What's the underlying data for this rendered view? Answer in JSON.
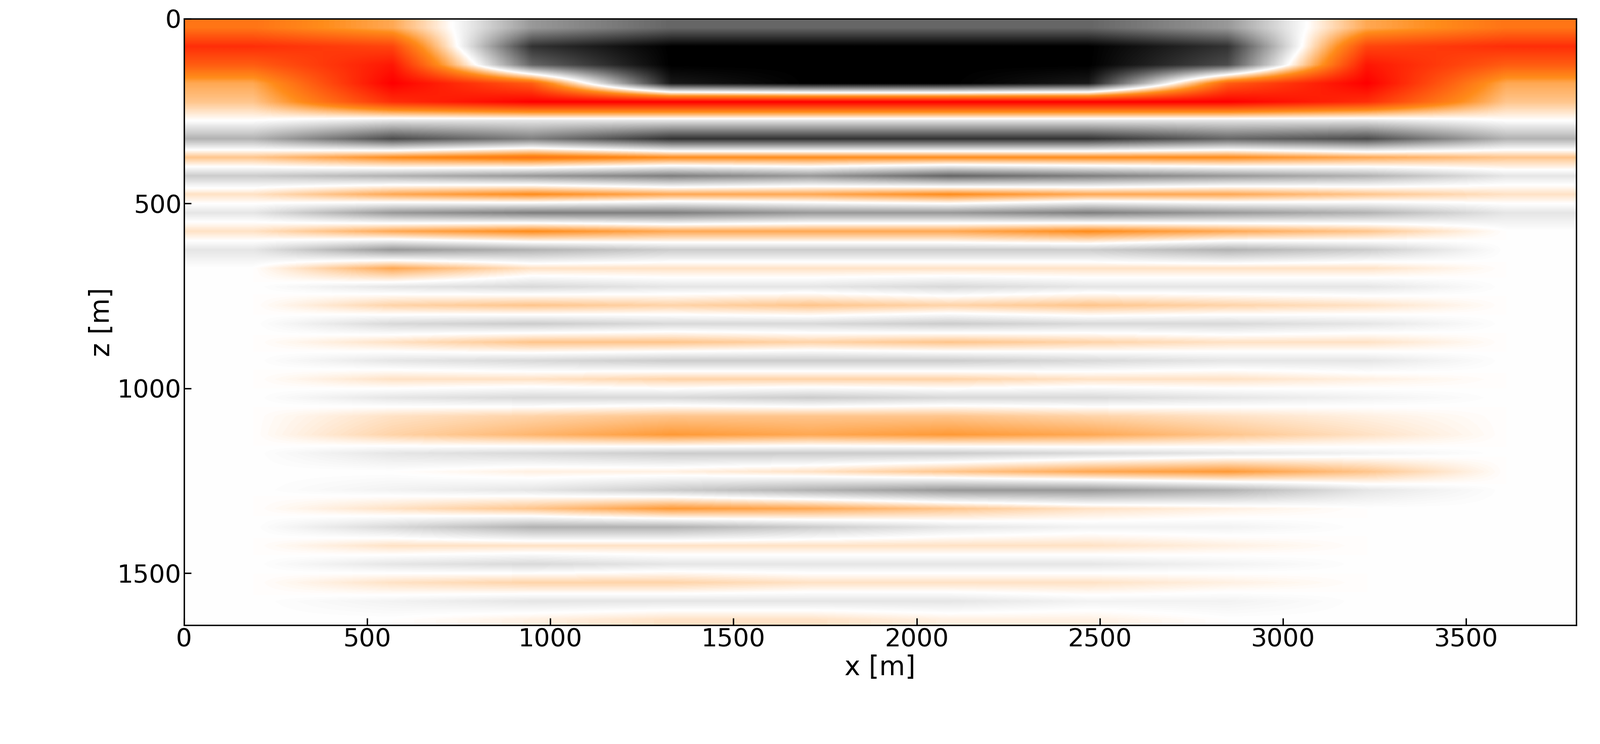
{
  "chart_data": {
    "type": "heatmap",
    "xlabel": "x [m]",
    "ylabel": "z [m]",
    "xlim": [
      0,
      3800
    ],
    "ylim": [
      1640,
      0
    ],
    "xticks": [
      0,
      500,
      1000,
      1500,
      2000,
      2500,
      3000,
      3500
    ],
    "yticks": [
      0,
      500,
      1000,
      1500
    ],
    "x": [
      190,
      570,
      950,
      1330,
      1710,
      2090,
      2470,
      2850,
      3230,
      3610
    ],
    "y": [
      25,
      75,
      125,
      175,
      225,
      275,
      325,
      375,
      425,
      475,
      525,
      575,
      625,
      675,
      725,
      775,
      825,
      875,
      925,
      975,
      1025,
      1075,
      1125,
      1175,
      1225,
      1275,
      1325,
      1375,
      1425,
      1475,
      1525,
      1575,
      1625
    ],
    "cells": [
      [
        -0.5,
        -0.3,
        0.4,
        0.6,
        0.6,
        0.6,
        0.6,
        0.4,
        -0.3,
        -0.5
      ],
      [
        -0.8,
        -0.7,
        0.8,
        1,
        1,
        1,
        1,
        0.8,
        -0.7,
        -0.8
      ],
      [
        -0.6,
        -0.9,
        0.6,
        1,
        1,
        1,
        1,
        0.7,
        -0.9,
        -0.6
      ],
      [
        -0.3,
        -1,
        -0.6,
        0.9,
        1,
        1,
        0.9,
        -0.6,
        -1,
        -0.3
      ],
      [
        -0.2,
        -0.8,
        -1,
        -1,
        -1,
        -1,
        -1,
        -1,
        -0.8,
        -0.2
      ],
      [
        0,
        0.1,
        0.1,
        0.1,
        0.1,
        0.1,
        0.1,
        0.1,
        0.1,
        0
      ],
      [
        0.3,
        0.7,
        0.5,
        0.8,
        0.8,
        0.8,
        0.8,
        0.6,
        0.7,
        0.3
      ],
      [
        -0.2,
        -0.4,
        -0.5,
        -0.4,
        -0.4,
        -0.4,
        -0.4,
        -0.4,
        -0.3,
        -0.2
      ],
      [
        0.2,
        0.3,
        0.4,
        0.5,
        0.4,
        0.6,
        0.5,
        0.4,
        0.3,
        0.1
      ],
      [
        -0.1,
        -0.3,
        -0.4,
        -0.3,
        -0.3,
        -0.4,
        -0.3,
        -0.3,
        -0.2,
        -0.1
      ],
      [
        0.1,
        0.4,
        0.5,
        0.5,
        0.4,
        0.4,
        0.5,
        0.4,
        0.3,
        0.1
      ],
      [
        -0.1,
        -0.3,
        -0.4,
        -0.3,
        -0.3,
        -0.3,
        -0.4,
        -0.3,
        -0.2,
        0
      ],
      [
        0.1,
        0.4,
        0.3,
        0.2,
        0.2,
        0.2,
        0.2,
        0.3,
        0.2,
        0
      ],
      [
        0,
        -0.3,
        -0.1,
        -0.1,
        -0.1,
        -0.1,
        -0.1,
        -0.1,
        -0.1,
        0
      ],
      [
        0,
        0.1,
        0.15,
        0.1,
        0.1,
        0.15,
        0.1,
        0.1,
        0.1,
        0
      ],
      [
        0,
        -0.15,
        -0.2,
        -0.15,
        -0.2,
        -0.15,
        -0.2,
        -0.15,
        -0.1,
        0
      ],
      [
        0,
        0.15,
        0.2,
        0.15,
        0.15,
        0.2,
        0.15,
        0.15,
        0.1,
        0
      ],
      [
        0,
        -0.1,
        -0.2,
        -0.2,
        -0.15,
        -0.2,
        -0.15,
        -0.1,
        -0.1,
        0
      ],
      [
        0,
        0.1,
        0.15,
        0.2,
        0.2,
        0.2,
        0.15,
        0.1,
        0.1,
        0
      ],
      [
        0,
        -0.1,
        -0.1,
        -0.15,
        -0.15,
        -0.15,
        -0.1,
        -0.1,
        -0.05,
        0
      ],
      [
        0,
        0.1,
        0.15,
        0.15,
        0.2,
        0.15,
        0.15,
        0.1,
        0.05,
        0
      ],
      [
        0,
        -0.1,
        -0.15,
        -0.2,
        -0.2,
        -0.2,
        -0.15,
        -0.1,
        -0.05,
        0
      ],
      [
        0,
        -0.15,
        -0.25,
        -0.35,
        -0.3,
        -0.35,
        -0.3,
        -0.2,
        -0.1,
        0
      ],
      [
        0,
        0.1,
        0.15,
        0.2,
        0.2,
        0.2,
        0.15,
        0.1,
        0.05,
        0
      ],
      [
        0,
        0,
        -0.05,
        -0.05,
        -0.1,
        -0.2,
        -0.3,
        -0.35,
        -0.2,
        0
      ],
      [
        0,
        0.05,
        0.1,
        0.2,
        0.3,
        0.4,
        0.4,
        0.3,
        0.1,
        0
      ],
      [
        0,
        -0.1,
        -0.2,
        -0.35,
        -0.3,
        -0.2,
        -0.1,
        -0.05,
        0,
        0
      ],
      [
        0,
        0.15,
        0.3,
        0.3,
        0.2,
        0.1,
        0.05,
        0.05,
        0,
        0
      ],
      [
        0,
        -0.1,
        -0.1,
        -0.1,
        -0.1,
        -0.1,
        -0.1,
        -0.05,
        0,
        0
      ],
      [
        0,
        0.1,
        0.15,
        0.1,
        0.1,
        0.1,
        0.1,
        0.05,
        0,
        0
      ],
      [
        0,
        -0.1,
        -0.15,
        -0.15,
        -0.1,
        -0.1,
        -0.1,
        -0.05,
        0,
        0
      ],
      [
        0,
        0.05,
        0.1,
        0.1,
        0.1,
        0.1,
        0.05,
        0.05,
        0,
        0
      ],
      [
        0,
        0,
        -0.05,
        -0.1,
        -0.1,
        -0.05,
        -0.05,
        0,
        0,
        0
      ]
    ]
  }
}
